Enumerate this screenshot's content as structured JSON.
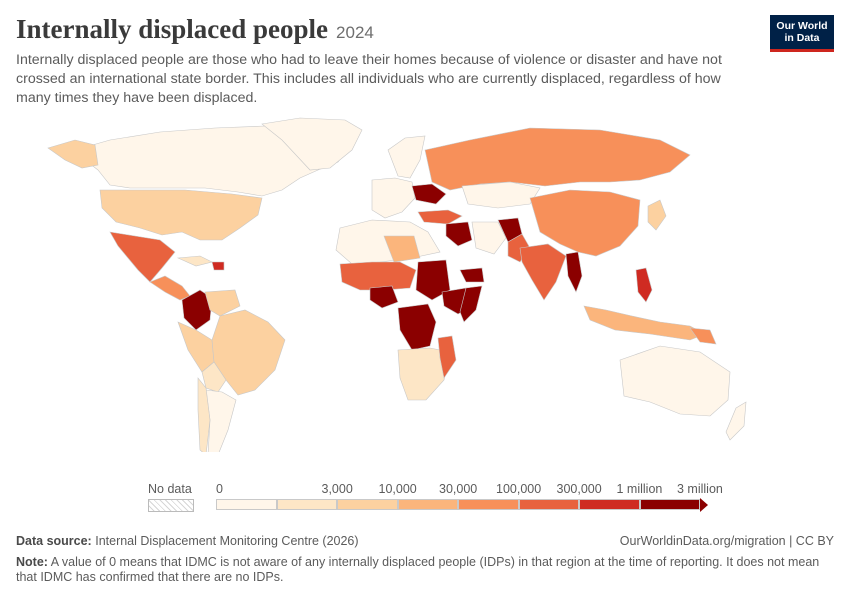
{
  "header": {
    "title": "Internally displaced people",
    "year": "2024",
    "subtitle": "Internally displaced people are those who had to leave their homes because of violence or disaster and have not crossed an international state border. This includes all individuals who are currently displaced, regardless of how many times they have been displaced."
  },
  "logo": {
    "line1": "Our World",
    "line2": "in Data"
  },
  "legend": {
    "no_data_label": "No data",
    "ticks": [
      "0",
      "3,000",
      "10,000",
      "30,000",
      "100,000",
      "300,000",
      "1 million",
      "3 million"
    ],
    "colors": [
      "#fff6ea",
      "#fde6c6",
      "#fcd1a0",
      "#fbb57c",
      "#f7905a",
      "#e8623e",
      "#cf2b22",
      "#8b0000"
    ]
  },
  "footer": {
    "source_label": "Data source:",
    "source_text": "Internal Displacement Monitoring Centre (2026)",
    "url_text": "OurWorldinData.org/migration | CC BY",
    "note_label": "Note:",
    "note_text": "A value of 0 means that IDMC is not aware of any internally displaced people (IDPs) in that region at the time of reporting. It does not mean that IDMC has confirmed that there are no IDPs."
  }
}
